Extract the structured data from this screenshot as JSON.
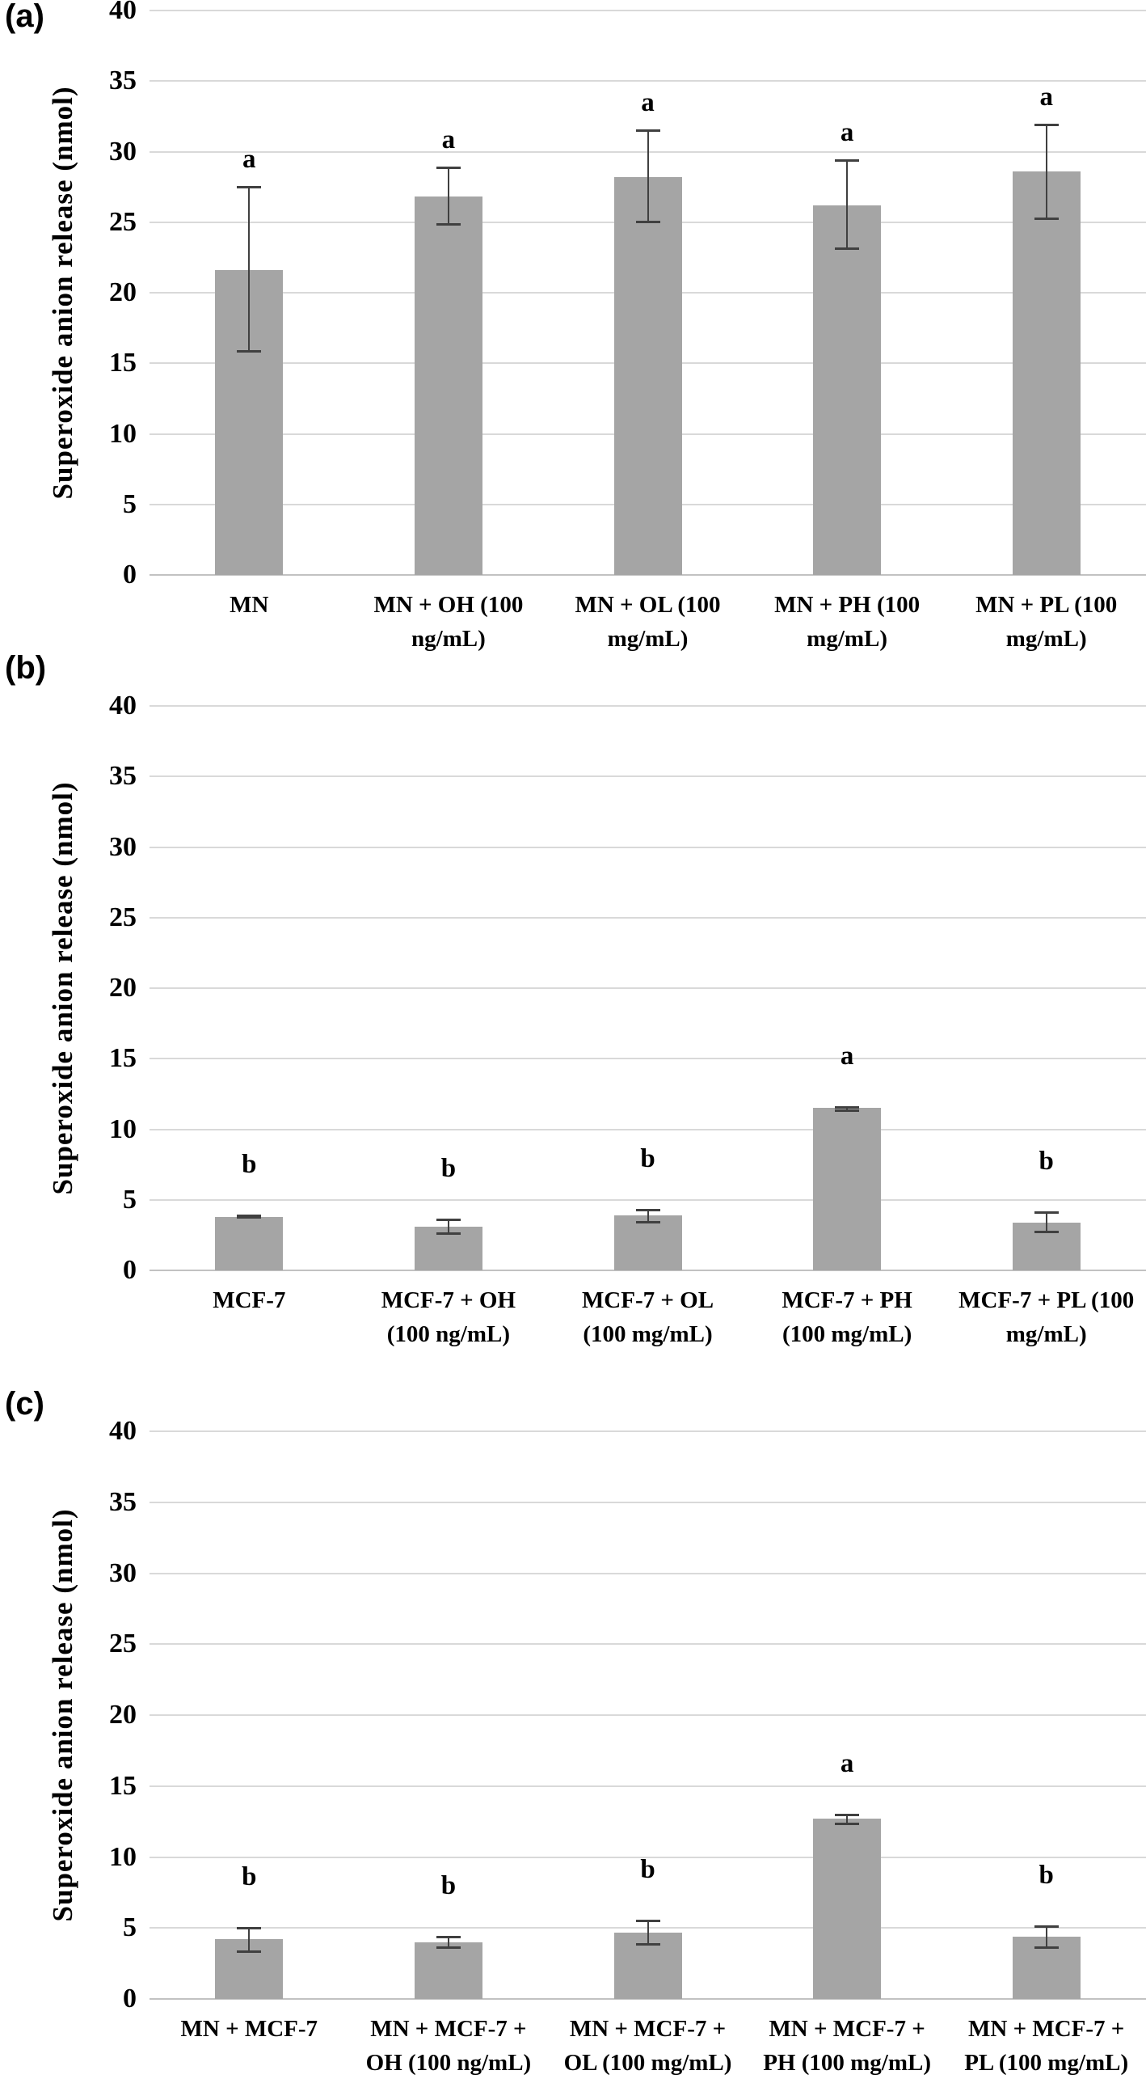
{
  "figure": {
    "background": "#ffffff",
    "bar_color": "#a5a5a5",
    "error_color": "#404040",
    "grid_color": "#d9d9d9",
    "axis_color": "#c2c2c2",
    "text_color": "#000000"
  },
  "chart_data": [
    {
      "type": "bar",
      "panel_label": "(a)",
      "title": "",
      "ylabel": "Superoxide anion release (nmol)",
      "xlabel": "",
      "ylim": [
        0,
        40
      ],
      "ytick_step": 5,
      "grid": true,
      "legend": false,
      "categories": [
        "MN",
        "MN + OH (100\nng/mL)",
        "MN + OL (100\nmg/mL)",
        "MN + PH (100\nmg/mL)",
        "MN + PL  (100\nmg/mL)"
      ],
      "values": [
        21.6,
        26.8,
        28.2,
        26.2,
        28.6
      ],
      "error_low": [
        15.8,
        24.8,
        25.0,
        23.1,
        25.2
      ],
      "error_high": [
        27.5,
        28.9,
        31.5,
        29.4,
        31.9
      ],
      "sig_letters": [
        "a",
        "a",
        "a",
        "a",
        "a"
      ]
    },
    {
      "type": "bar",
      "panel_label": "(b)",
      "title": "",
      "ylabel": "Superoxide anion release (nmol)",
      "xlabel": "",
      "ylim": [
        0,
        40
      ],
      "ytick_step": 5,
      "grid": true,
      "legend": false,
      "categories": [
        "MCF-7",
        "MCF-7 + OH\n(100 ng/mL)",
        "MCF-7 + OL\n(100 mg/mL)",
        "MCF-7 + PH\n(100 mg/mL)",
        "MCF-7 + PL (100\nmg/mL)"
      ],
      "values": [
        3.8,
        3.1,
        3.9,
        11.5,
        3.4
      ],
      "error_low": [
        3.7,
        2.6,
        3.4,
        11.3,
        2.7
      ],
      "error_high": [
        3.9,
        3.6,
        4.3,
        11.6,
        4.1
      ],
      "sig_letters": [
        "b",
        "b",
        "b",
        "a",
        "b"
      ]
    },
    {
      "type": "bar",
      "panel_label": "(c)",
      "title": "",
      "ylabel": "Superoxide anion release (nmol)",
      "xlabel": "",
      "ylim": [
        0,
        40
      ],
      "ytick_step": 5,
      "grid": true,
      "legend": false,
      "categories": [
        "MN + MCF-7",
        "MN + MCF-7 +\nOH (100 ng/mL)",
        "MN + MCF-7 +\nOL (100 mg/mL)",
        "MN + MCF-7 +\nPH (100 mg/mL)",
        "MN + MCF-7 +\nPL (100 mg/mL)"
      ],
      "values": [
        4.2,
        4.0,
        4.7,
        12.7,
        4.4
      ],
      "error_low": [
        3.3,
        3.6,
        3.8,
        12.3,
        3.6
      ],
      "error_high": [
        5.0,
        4.4,
        5.5,
        13.0,
        5.1
      ],
      "sig_letters": [
        "b",
        "b",
        "b",
        "a",
        "b"
      ]
    }
  ]
}
